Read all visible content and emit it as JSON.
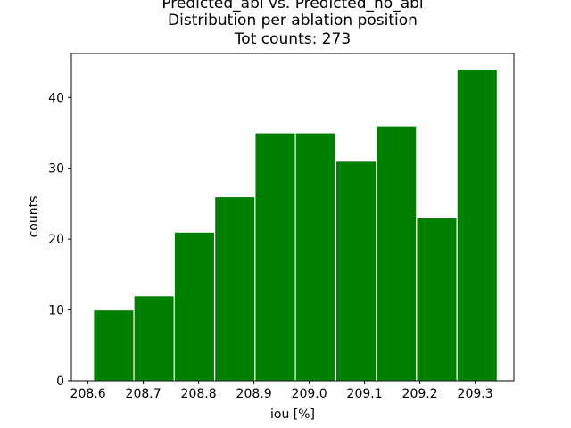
{
  "chart_data": {
    "type": "bar",
    "title_lines": [
      "Predicted_abl vs. Predicted_no_abl",
      "Distribution per ablation position",
      "Tot counts: 273"
    ],
    "xlabel": "iou [%]",
    "ylabel": "counts",
    "bin_edges": [
      208.61,
      208.683,
      208.756,
      208.829,
      208.902,
      208.975,
      209.048,
      209.121,
      209.194,
      209.267,
      209.34
    ],
    "values": [
      10,
      12,
      21,
      26,
      35,
      35,
      31,
      36,
      23,
      44
    ],
    "xlim": [
      208.57,
      209.37
    ],
    "ylim": [
      0,
      46.2
    ],
    "x_ticks": [
      208.6,
      208.7,
      208.8,
      208.9,
      209.0,
      209.1,
      209.2,
      209.3
    ],
    "x_tick_labels": [
      "208.6",
      "208.7",
      "208.8",
      "208.9",
      "209.0",
      "209.1",
      "209.2",
      "209.3"
    ],
    "y_ticks": [
      0,
      10,
      20,
      30,
      40
    ],
    "y_tick_labels": [
      "0",
      "10",
      "20",
      "30",
      "40"
    ],
    "bar_color": "#008000",
    "bar_edge_color": "#ffffff",
    "grid": false,
    "legend": "none"
  }
}
